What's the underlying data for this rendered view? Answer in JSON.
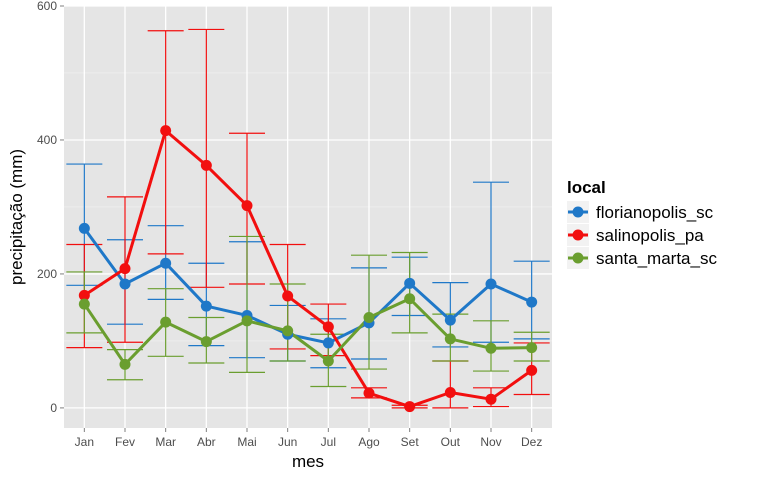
{
  "chart_data": {
    "type": "line",
    "xlabel": "mes",
    "ylabel": "precipitação (mm)",
    "categories": [
      "Jan",
      "Fev",
      "Mar",
      "Abr",
      "Mai",
      "Jun",
      "Jul",
      "Ago",
      "Set",
      "Out",
      "Nov",
      "Dez"
    ],
    "ylim": [
      -30,
      600
    ],
    "yticks": [
      0,
      200,
      400,
      600
    ],
    "grid": true,
    "legend": {
      "title": "local",
      "position": "right"
    },
    "series": [
      {
        "name": "florianopolis_sc",
        "color": "#1f78c8",
        "values": [
          268,
          185,
          216,
          152,
          138,
          110,
          97,
          127,
          186,
          131,
          185,
          158
        ],
        "error_low": [
          183,
          125,
          162,
          93,
          75,
          70,
          60,
          73,
          138,
          91,
          98,
          103
        ],
        "error_high": [
          364,
          251,
          272,
          216,
          248,
          153,
          133,
          209,
          225,
          187,
          337,
          219
        ]
      },
      {
        "name": "salinopolis_pa",
        "color": "#f20f0f",
        "values": [
          168,
          208,
          414,
          362,
          302,
          167,
          121,
          22,
          2,
          23,
          13,
          56
        ],
        "error_low": [
          90,
          98,
          230,
          180,
          185,
          88,
          78,
          15,
          0,
          0,
          2,
          20
        ],
        "error_high": [
          244,
          315,
          563,
          565,
          410,
          244,
          155,
          30,
          4,
          70,
          30,
          97
        ]
      },
      {
        "name": "santa_marta_sc",
        "color": "#6a9e2f",
        "values": [
          155,
          65,
          128,
          99,
          130,
          115,
          70,
          135,
          163,
          103,
          89,
          90
        ],
        "error_low": [
          112,
          42,
          77,
          67,
          53,
          70,
          32,
          58,
          112,
          70,
          55,
          70
        ],
        "error_high": [
          203,
          87,
          178,
          135,
          256,
          185,
          110,
          228,
          232,
          140,
          130,
          113
        ]
      }
    ]
  }
}
